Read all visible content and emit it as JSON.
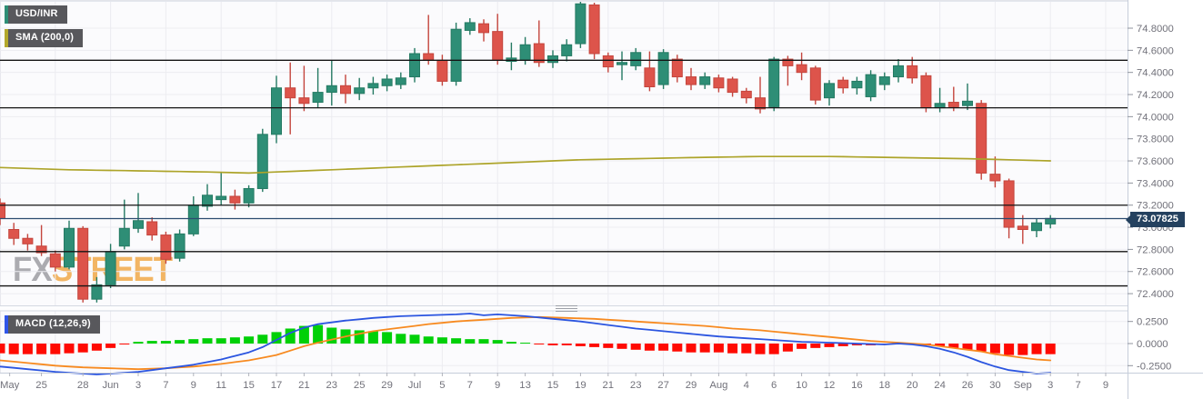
{
  "header": {
    "symbol_badge": "USD/INR",
    "sma_badge": "SMA (200,0)",
    "macd_badge": "MACD (12,26,9)"
  },
  "watermark": {
    "part1": "FX",
    "part2": "STREET"
  },
  "price_badge": "73.07825",
  "colors": {
    "candle_up_fill": "#2e8e76",
    "candle_up_stroke": "#257a63",
    "candle_down_fill": "#dd544b",
    "candle_down_stroke": "#c4453d",
    "sma_line": "#ada42a",
    "level_line": "#141414",
    "last_price_line": "#2c4b70",
    "last_price_badge_bg": "#24415f",
    "macd_hist_pos": "#00d008",
    "macd_hist_neg": "#ff0a02",
    "macd_line": "#2b55e0",
    "signal_line": "#f78a20",
    "grid": "#ececf1",
    "axis_text": "#71717a",
    "axis_border": "#c6cdda"
  },
  "chart_data": {
    "type": "candlestick+macd",
    "title": "USD/INR daily candlestick chart with SMA(200) overlay and MACD(12,26,9) panel",
    "price_axis": {
      "min": 72.28,
      "max": 75.06,
      "tick_step": 0.2,
      "ticks": [
        74.8,
        74.6,
        74.4,
        74.2,
        74.0,
        73.8,
        73.6,
        73.4,
        73.2,
        73.0,
        72.8,
        72.6,
        72.4
      ]
    },
    "macd_axis": {
      "ticks": [
        0.25,
        0.0,
        -0.25
      ]
    },
    "x_ticks": [
      [
        "May",
        0.7
      ],
      [
        "25",
        3
      ],
      [
        "28",
        6
      ],
      [
        "Jun",
        8
      ],
      [
        "3",
        10
      ],
      [
        "7",
        12
      ],
      [
        "9",
        14
      ],
      [
        "11",
        16
      ],
      [
        "15",
        18
      ],
      [
        "17",
        20
      ],
      [
        "21",
        22
      ],
      [
        "23",
        24
      ],
      [
        "25",
        26
      ],
      [
        "29",
        28
      ],
      [
        "Jul",
        30
      ],
      [
        "5",
        32
      ],
      [
        "7",
        34
      ],
      [
        "9",
        36
      ],
      [
        "13",
        38
      ],
      [
        "15",
        40
      ],
      [
        "19",
        42
      ],
      [
        "21",
        44
      ],
      [
        "23",
        46
      ],
      [
        "27",
        48
      ],
      [
        "29",
        50
      ],
      [
        "Aug",
        52
      ],
      [
        "4",
        54
      ],
      [
        "6",
        56
      ],
      [
        "10",
        58
      ],
      [
        "12",
        60
      ],
      [
        "16",
        62
      ],
      [
        "18",
        64
      ],
      [
        "20",
        66
      ],
      [
        "24",
        68
      ],
      [
        "26",
        70
      ],
      [
        "30",
        72
      ],
      [
        "Sep",
        74
      ],
      [
        "3",
        76
      ],
      [
        "7",
        78
      ],
      [
        "9",
        80
      ]
    ],
    "levels": [
      74.51,
      74.08,
      73.2,
      72.78,
      72.47
    ],
    "last_price": 73.07825,
    "candles_columns": [
      "date",
      "open",
      "high",
      "low",
      "close"
    ],
    "candles": [
      [
        "May 20",
        73.22,
        73.26,
        73.02,
        73.08
      ],
      [
        "May 21",
        72.98,
        73.04,
        72.84,
        72.9
      ],
      [
        "May 24",
        72.9,
        72.94,
        72.79,
        72.85
      ],
      [
        "May 25",
        72.83,
        73.02,
        72.74,
        72.77
      ],
      [
        "May 26",
        72.76,
        72.79,
        72.6,
        72.64
      ],
      [
        "May 27",
        72.64,
        73.06,
        72.62,
        72.99
      ],
      [
        "May 28",
        72.99,
        73.01,
        72.32,
        72.35
      ],
      [
        "May 31",
        72.35,
        72.55,
        72.32,
        72.48
      ],
      [
        "Jun 1",
        72.48,
        72.85,
        72.45,
        72.78
      ],
      [
        "Jun 2",
        72.83,
        73.25,
        72.8,
        72.99
      ],
      [
        "Jun 3",
        72.99,
        73.31,
        72.95,
        73.06
      ],
      [
        "Jun 4",
        73.05,
        73.09,
        72.88,
        72.93
      ],
      [
        "Jun 7",
        72.93,
        72.96,
        72.67,
        72.71
      ],
      [
        "Jun 8",
        72.72,
        72.98,
        72.69,
        72.94
      ],
      [
        "Jun 9",
        72.94,
        73.28,
        72.92,
        73.2
      ],
      [
        "Jun 10",
        73.19,
        73.39,
        73.15,
        73.29
      ],
      [
        "Jun 11",
        73.25,
        73.5,
        73.2,
        73.28
      ],
      [
        "Jun 14",
        73.28,
        73.34,
        73.16,
        73.22
      ],
      [
        "Jun 15",
        73.22,
        73.38,
        73.18,
        73.35
      ],
      [
        "Jun 16",
        73.35,
        73.89,
        73.32,
        73.84
      ],
      [
        "Jun 17",
        73.84,
        74.37,
        73.76,
        74.26
      ],
      [
        "Jun 18",
        74.26,
        74.49,
        73.84,
        74.17
      ],
      [
        "Jun 21",
        74.17,
        74.46,
        74.05,
        74.12
      ],
      [
        "Jun 22",
        74.13,
        74.44,
        74.08,
        74.22
      ],
      [
        "Jun 23",
        74.22,
        74.51,
        74.1,
        74.28
      ],
      [
        "Jun 24",
        74.28,
        74.38,
        74.12,
        74.21
      ],
      [
        "Jun 25",
        74.21,
        74.35,
        74.15,
        74.26
      ],
      [
        "Jun 28",
        74.26,
        74.36,
        74.2,
        74.3
      ],
      [
        "Jun 29",
        74.28,
        74.38,
        74.23,
        74.34
      ],
      [
        "Jun 30",
        74.29,
        74.4,
        74.25,
        74.35
      ],
      [
        "Jul 1",
        74.36,
        74.62,
        74.31,
        74.57
      ],
      [
        "Jul 2",
        74.57,
        74.92,
        74.47,
        74.51
      ],
      [
        "Jul 5",
        74.51,
        74.56,
        74.28,
        74.32
      ],
      [
        "Jul 6",
        74.32,
        74.85,
        74.28,
        74.79
      ],
      [
        "Jul 7",
        74.78,
        74.89,
        74.74,
        74.85
      ],
      [
        "Jul 8",
        74.84,
        74.88,
        74.68,
        74.76
      ],
      [
        "Jul 9",
        74.77,
        74.93,
        74.47,
        74.51
      ],
      [
        "Jul 12",
        74.5,
        74.67,
        74.42,
        74.53
      ],
      [
        "Jul 13",
        74.51,
        74.72,
        74.47,
        74.65
      ],
      [
        "Jul 14",
        74.66,
        74.87,
        74.45,
        74.49
      ],
      [
        "Jul 15",
        74.49,
        74.6,
        74.44,
        74.55
      ],
      [
        "Jul 16",
        74.55,
        74.7,
        74.5,
        74.65
      ],
      [
        "Jul 19",
        74.66,
        75.04,
        74.62,
        75.02
      ],
      [
        "Jul 20",
        75.01,
        75.03,
        74.52,
        74.57
      ],
      [
        "Jul 21",
        74.55,
        74.58,
        74.4,
        74.45
      ],
      [
        "Jul 22",
        74.47,
        74.59,
        74.33,
        74.49
      ],
      [
        "Jul 23",
        74.46,
        74.62,
        74.42,
        74.58
      ],
      [
        "Jul 26",
        74.44,
        74.59,
        74.23,
        74.27
      ],
      [
        "Jul 27",
        74.29,
        74.61,
        74.25,
        74.58
      ],
      [
        "Jul 28",
        74.52,
        74.56,
        74.31,
        74.36
      ],
      [
        "Jul 29",
        74.36,
        74.44,
        74.24,
        74.29
      ],
      [
        "Jul 30",
        74.29,
        74.4,
        74.25,
        74.36
      ],
      [
        "Aug 2",
        74.35,
        74.38,
        74.22,
        74.26
      ],
      [
        "Aug 3",
        74.34,
        74.36,
        74.18,
        74.22
      ],
      [
        "Aug 4",
        74.23,
        74.26,
        74.12,
        74.17
      ],
      [
        "Aug 5",
        74.17,
        74.36,
        74.03,
        74.07
      ],
      [
        "Aug 6",
        74.09,
        74.54,
        74.05,
        74.52
      ],
      [
        "Aug 9",
        74.52,
        74.55,
        74.28,
        74.46
      ],
      [
        "Aug 10",
        74.47,
        74.58,
        74.33,
        74.4
      ],
      [
        "Aug 11",
        74.44,
        74.46,
        74.11,
        74.15
      ],
      [
        "Aug 12",
        74.17,
        74.33,
        74.1,
        74.3
      ],
      [
        "Aug 13",
        74.33,
        74.36,
        74.21,
        74.26
      ],
      [
        "Aug 16",
        74.26,
        74.36,
        74.2,
        74.32
      ],
      [
        "Aug 17",
        74.18,
        74.42,
        74.14,
        74.38
      ],
      [
        "Aug 18",
        74.29,
        74.4,
        74.24,
        74.36
      ],
      [
        "Aug 19",
        74.36,
        74.52,
        74.31,
        74.46
      ],
      [
        "Aug 20",
        74.46,
        74.54,
        74.3,
        74.35
      ],
      [
        "Aug 23",
        74.37,
        74.4,
        74.04,
        74.08
      ],
      [
        "Aug 24",
        74.08,
        74.26,
        74.04,
        74.12
      ],
      [
        "Aug 25",
        74.13,
        74.27,
        74.05,
        74.09
      ],
      [
        "Aug 26",
        74.1,
        74.3,
        74.06,
        74.14
      ],
      [
        "Aug 27",
        74.12,
        74.15,
        73.43,
        73.49
      ],
      [
        "Aug 30",
        73.48,
        73.64,
        73.36,
        73.42
      ],
      [
        "Aug 31",
        73.42,
        73.44,
        72.9,
        73.0
      ],
      [
        "Sep 1",
        73.01,
        73.11,
        72.85,
        72.98
      ],
      [
        "Sep 2",
        72.97,
        73.08,
        72.91,
        73.04
      ],
      [
        "Sep 3",
        73.03,
        73.11,
        72.99,
        73.08
      ]
    ],
    "sma": {
      "label": "SMA (200,0)",
      "period": 200,
      "points": [
        [
          0,
          73.54
        ],
        [
          5,
          73.52
        ],
        [
          10,
          73.51
        ],
        [
          15,
          73.5
        ],
        [
          18,
          73.49
        ],
        [
          22,
          73.51
        ],
        [
          26,
          73.53
        ],
        [
          30,
          73.55
        ],
        [
          34,
          73.57
        ],
        [
          38,
          73.59
        ],
        [
          42,
          73.61
        ],
        [
          46,
          73.62
        ],
        [
          50,
          73.63
        ],
        [
          55,
          73.64
        ],
        [
          60,
          73.64
        ],
        [
          65,
          73.63
        ],
        [
          70,
          73.62
        ],
        [
          73,
          73.61
        ],
        [
          76,
          73.6
        ]
      ]
    },
    "macd": {
      "label": "MACD (12,26,9)",
      "params": [
        12,
        26,
        9
      ],
      "histogram": [
        -0.11,
        -0.12,
        -0.12,
        -0.12,
        -0.12,
        -0.11,
        -0.1,
        -0.08,
        -0.05,
        -0.01,
        0.02,
        0.03,
        0.03,
        0.04,
        0.05,
        0.06,
        0.06,
        0.07,
        0.08,
        0.1,
        0.13,
        0.17,
        0.2,
        0.21,
        0.18,
        0.16,
        0.15,
        0.14,
        0.13,
        0.11,
        0.1,
        0.08,
        0.07,
        0.06,
        0.05,
        0.05,
        0.04,
        0.02,
        0.01,
        -0.01,
        -0.02,
        -0.02,
        -0.03,
        -0.04,
        -0.05,
        -0.06,
        -0.07,
        -0.08,
        -0.08,
        -0.09,
        -0.1,
        -0.1,
        -0.1,
        -0.11,
        -0.11,
        -0.12,
        -0.12,
        -0.09,
        -0.06,
        -0.05,
        -0.04,
        -0.03,
        -0.02,
        -0.02,
        -0.01,
        0.0,
        -0.01,
        -0.02,
        -0.03,
        -0.05,
        -0.07,
        -0.09,
        -0.11,
        -0.13,
        -0.13,
        -0.12,
        -0.12
      ],
      "macd_line_points": [
        [
          0,
          -0.26
        ],
        [
          2,
          -0.29
        ],
        [
          4,
          -0.32
        ],
        [
          6,
          -0.34
        ],
        [
          7,
          -0.35
        ],
        [
          8,
          -0.34
        ],
        [
          10,
          -0.32
        ],
        [
          12,
          -0.28
        ],
        [
          14,
          -0.24
        ],
        [
          16,
          -0.18
        ],
        [
          18,
          -0.1
        ],
        [
          19,
          -0.04
        ],
        [
          20,
          0.04
        ],
        [
          21,
          0.12
        ],
        [
          22,
          0.18
        ],
        [
          23,
          0.22
        ],
        [
          25,
          0.26
        ],
        [
          27,
          0.29
        ],
        [
          29,
          0.31
        ],
        [
          31,
          0.32
        ],
        [
          33,
          0.33
        ],
        [
          34,
          0.34
        ],
        [
          35,
          0.32
        ],
        [
          36,
          0.33
        ],
        [
          38,
          0.31
        ],
        [
          40,
          0.28
        ],
        [
          42,
          0.25
        ],
        [
          44,
          0.21
        ],
        [
          46,
          0.17
        ],
        [
          48,
          0.14
        ],
        [
          50,
          0.11
        ],
        [
          52,
          0.08
        ],
        [
          54,
          0.06
        ],
        [
          56,
          0.04
        ],
        [
          58,
          0.02
        ],
        [
          60,
          0.01
        ],
        [
          62,
          0.0
        ],
        [
          64,
          -0.01
        ],
        [
          65,
          0.0
        ],
        [
          66,
          -0.01
        ],
        [
          67,
          -0.03
        ],
        [
          68,
          -0.06
        ],
        [
          69,
          -0.1
        ],
        [
          70,
          -0.15
        ],
        [
          71,
          -0.21
        ],
        [
          72,
          -0.26
        ],
        [
          73,
          -0.3
        ],
        [
          74,
          -0.32
        ],
        [
          75,
          -0.34
        ],
        [
          76,
          -0.33
        ]
      ],
      "signal_line_points": [
        [
          0,
          -0.19
        ],
        [
          2,
          -0.22
        ],
        [
          4,
          -0.25
        ],
        [
          6,
          -0.27
        ],
        [
          8,
          -0.28
        ],
        [
          10,
          -0.29
        ],
        [
          12,
          -0.28
        ],
        [
          14,
          -0.26
        ],
        [
          16,
          -0.23
        ],
        [
          18,
          -0.19
        ],
        [
          20,
          -0.13
        ],
        [
          21,
          -0.08
        ],
        [
          22,
          -0.03
        ],
        [
          23,
          0.01
        ],
        [
          25,
          0.08
        ],
        [
          27,
          0.14
        ],
        [
          29,
          0.18
        ],
        [
          31,
          0.22
        ],
        [
          33,
          0.25
        ],
        [
          35,
          0.27
        ],
        [
          37,
          0.29
        ],
        [
          39,
          0.3
        ],
        [
          41,
          0.29
        ],
        [
          43,
          0.28
        ],
        [
          45,
          0.26
        ],
        [
          47,
          0.24
        ],
        [
          49,
          0.22
        ],
        [
          51,
          0.2
        ],
        [
          53,
          0.17
        ],
        [
          55,
          0.15
        ],
        [
          57,
          0.12
        ],
        [
          59,
          0.09
        ],
        [
          61,
          0.06
        ],
        [
          63,
          0.03
        ],
        [
          65,
          0.01
        ],
        [
          66,
          0.0
        ],
        [
          67,
          -0.01
        ],
        [
          68,
          -0.03
        ],
        [
          69,
          -0.05
        ],
        [
          70,
          -0.07
        ],
        [
          71,
          -0.09
        ],
        [
          72,
          -0.12
        ],
        [
          73,
          -0.14
        ],
        [
          74,
          -0.16
        ],
        [
          75,
          -0.18
        ],
        [
          76,
          -0.19
        ]
      ]
    }
  }
}
